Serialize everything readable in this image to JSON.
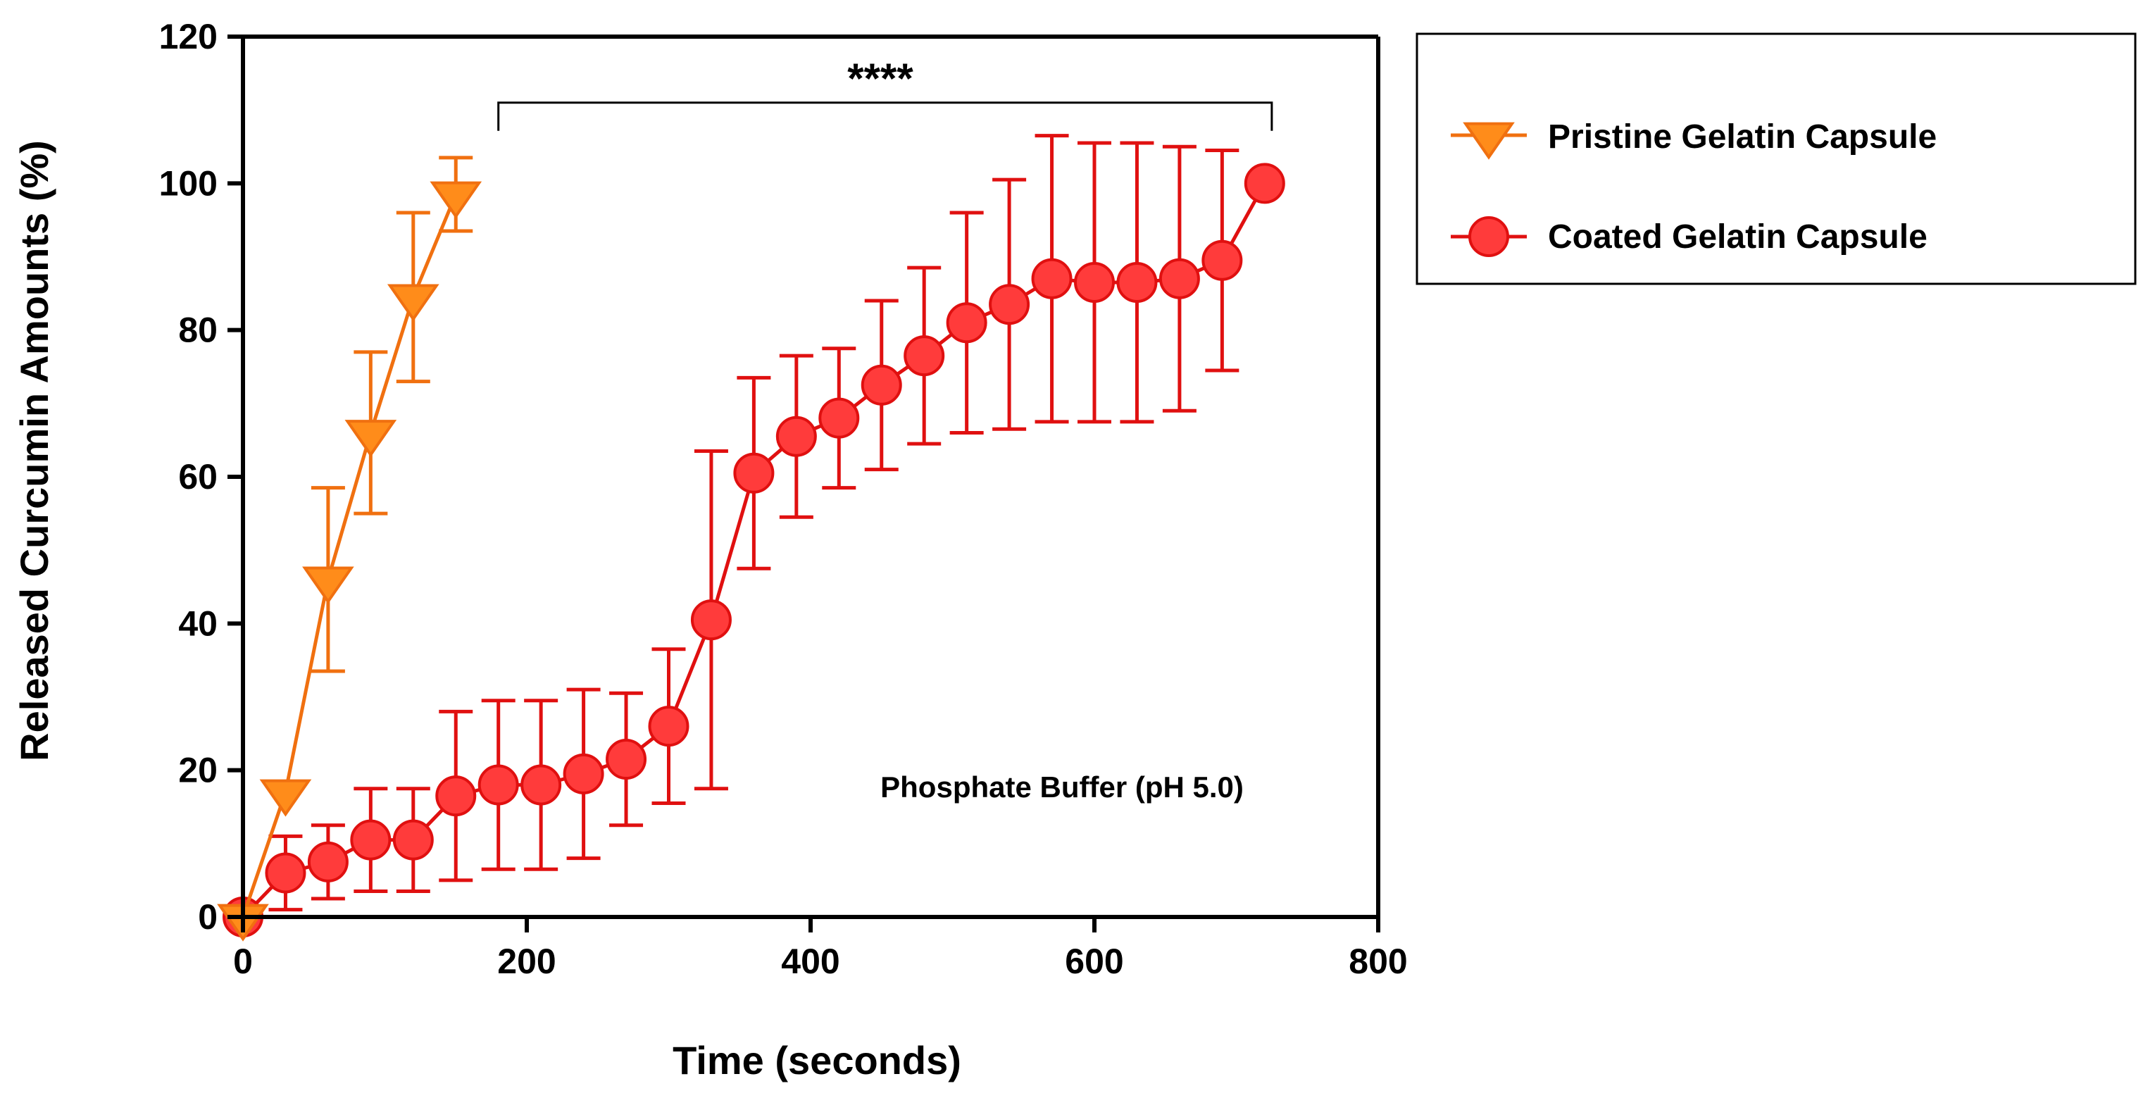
{
  "chart_data": {
    "type": "line",
    "title": "",
    "xlabel": "Time (seconds)",
    "ylabel": "Released Curcumin Amounts (%)",
    "xlim": [
      0,
      800
    ],
    "ylim": [
      0,
      120
    ],
    "xticks": [
      0,
      200,
      400,
      600,
      800
    ],
    "yticks": [
      0,
      20,
      40,
      60,
      80,
      100,
      120
    ],
    "grid": false,
    "legend_position": "right",
    "annotation": "Phosphate Buffer (pH 5.0)",
    "significance": {
      "label": "****",
      "x_start": 180,
      "x_end": 725,
      "y": 111
    },
    "series": [
      {
        "name": "Pristine Gelatin Capsule",
        "marker": "triangle-down",
        "color": "#FF8C1A",
        "edge_color": "#F07010",
        "x": [
          0,
          30,
          60,
          90,
          120,
          150
        ],
        "y": [
          0,
          17,
          46,
          66,
          84.5,
          98.5
        ],
        "err": [
          0,
          0,
          12.5,
          11,
          11.5,
          5
        ]
      },
      {
        "name": "Coated Gelatin Capsule",
        "marker": "circle",
        "color": "#FF3B3B",
        "edge_color": "#E01010",
        "x": [
          0,
          30,
          60,
          90,
          120,
          150,
          180,
          210,
          240,
          270,
          300,
          330,
          360,
          390,
          420,
          450,
          480,
          510,
          540,
          570,
          600,
          630,
          660,
          690,
          720
        ],
        "y": [
          0,
          6,
          7.5,
          10.5,
          10.5,
          16.5,
          18,
          18,
          19.5,
          21.5,
          26,
          40.5,
          60.5,
          65.5,
          68,
          72.5,
          76.5,
          81,
          83.5,
          87,
          86.5,
          86.5,
          87,
          89.5,
          100
        ],
        "err": [
          0,
          5,
          5,
          7,
          7,
          11.5,
          11.5,
          11.5,
          11.5,
          9,
          10.5,
          23,
          13,
          11,
          9.5,
          11.5,
          12,
          15,
          17,
          19.5,
          19,
          19,
          18,
          15,
          0
        ]
      }
    ]
  }
}
